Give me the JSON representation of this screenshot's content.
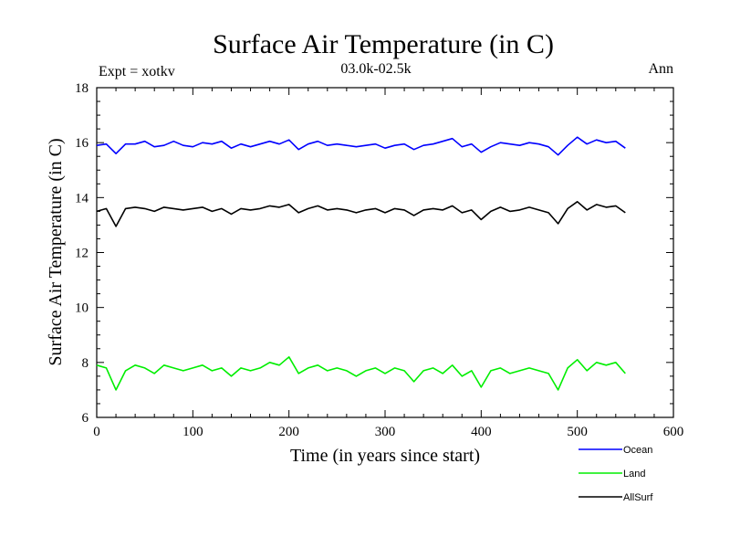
{
  "chart_data": {
    "type": "line",
    "title": "Surface Air Temperature (in C)",
    "subtitle_left": "Expt = xotkv",
    "subtitle_center": "03.0k-02.5k",
    "subtitle_right": "Ann",
    "xlabel": "Time (in years since start)",
    "ylabel": "Surface Air Temperature (in C)",
    "xlim": [
      0,
      600
    ],
    "ylim": [
      6,
      18
    ],
    "xticks": [
      0,
      100,
      200,
      300,
      400,
      500,
      600
    ],
    "yticks": [
      6,
      8,
      10,
      12,
      14,
      16,
      18
    ],
    "grid": false,
    "legend_position": "bottom-right",
    "x": [
      0,
      10,
      20,
      30,
      40,
      50,
      60,
      70,
      80,
      90,
      100,
      110,
      120,
      130,
      140,
      150,
      160,
      170,
      180,
      190,
      200,
      210,
      220,
      230,
      240,
      250,
      260,
      270,
      280,
      290,
      300,
      310,
      320,
      330,
      340,
      350,
      360,
      370,
      380,
      390,
      400,
      410,
      420,
      430,
      440,
      450,
      460,
      470,
      480,
      490,
      500,
      510,
      520,
      530,
      540,
      550
    ],
    "series": [
      {
        "name": "Ocean",
        "color": "#0000ff",
        "values": [
          15.9,
          15.95,
          15.6,
          15.95,
          15.95,
          16.05,
          15.85,
          15.9,
          16.05,
          15.9,
          15.85,
          16.0,
          15.95,
          16.05,
          15.8,
          15.95,
          15.85,
          15.95,
          16.05,
          15.95,
          16.1,
          15.75,
          15.95,
          16.05,
          15.9,
          15.95,
          15.9,
          15.85,
          15.9,
          15.95,
          15.8,
          15.9,
          15.95,
          15.75,
          15.9,
          15.95,
          16.05,
          16.15,
          15.85,
          15.95,
          15.65,
          15.85,
          16.0,
          15.95,
          15.9,
          16.0,
          15.95,
          15.85,
          15.55,
          15.9,
          16.2,
          15.95,
          16.1,
          16.0,
          16.05,
          15.8
        ]
      },
      {
        "name": "Land",
        "color": "#00ee00",
        "values": [
          7.9,
          7.8,
          7.0,
          7.7,
          7.9,
          7.8,
          7.6,
          7.9,
          7.8,
          7.7,
          7.8,
          7.9,
          7.7,
          7.8,
          7.5,
          7.8,
          7.7,
          7.8,
          8.0,
          7.9,
          8.2,
          7.6,
          7.8,
          7.9,
          7.7,
          7.8,
          7.7,
          7.5,
          7.7,
          7.8,
          7.6,
          7.8,
          7.7,
          7.3,
          7.7,
          7.8,
          7.6,
          7.9,
          7.5,
          7.7,
          7.1,
          7.7,
          7.8,
          7.6,
          7.7,
          7.8,
          7.7,
          7.6,
          7.0,
          7.8,
          8.1,
          7.7,
          8.0,
          7.9,
          8.0,
          7.6
        ]
      },
      {
        "name": "AllSurf",
        "color": "#000000",
        "values": [
          13.5,
          13.6,
          12.95,
          13.6,
          13.65,
          13.6,
          13.5,
          13.65,
          13.6,
          13.55,
          13.6,
          13.65,
          13.5,
          13.6,
          13.4,
          13.6,
          13.55,
          13.6,
          13.7,
          13.65,
          13.75,
          13.45,
          13.6,
          13.7,
          13.55,
          13.6,
          13.55,
          13.45,
          13.55,
          13.6,
          13.45,
          13.6,
          13.55,
          13.35,
          13.55,
          13.6,
          13.55,
          13.7,
          13.45,
          13.55,
          13.2,
          13.5,
          13.65,
          13.5,
          13.55,
          13.65,
          13.55,
          13.45,
          13.05,
          13.6,
          13.85,
          13.55,
          13.75,
          13.65,
          13.7,
          13.45
        ]
      }
    ]
  }
}
